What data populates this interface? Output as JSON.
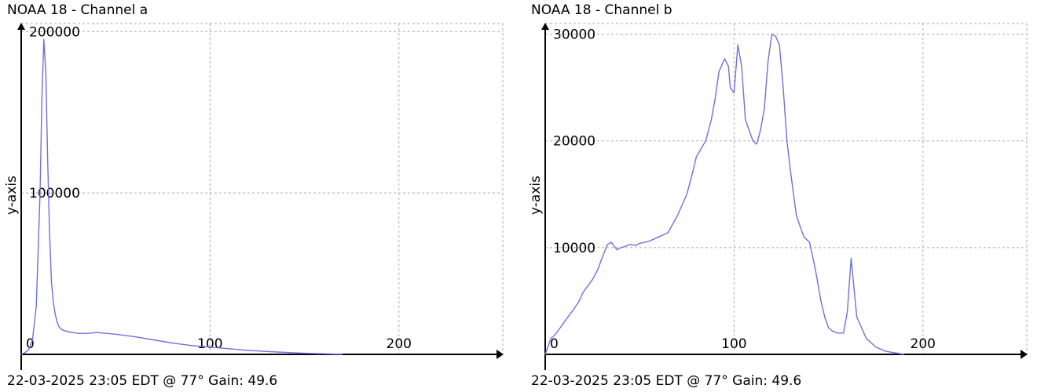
{
  "charts": [
    {
      "title": "NOAA 18 - Channel a",
      "footer": "22-03-2025 23:05 EDT @ 77° Gain: 49.6",
      "ylabel": "y-axis",
      "ytick_labels": [
        "100000",
        "200000"
      ],
      "xtick_labels": [
        "0",
        "100",
        "200"
      ]
    },
    {
      "title": "NOAA 18 - Channel b",
      "footer": "22-03-2025 23:05 EDT @ 77° Gain: 49.6",
      "ylabel": "y-axis",
      "ytick_labels": [
        "10000",
        "20000",
        "30000"
      ],
      "xtick_labels": [
        "0",
        "100",
        "200"
      ]
    }
  ],
  "colors": {
    "line": "#7070dd",
    "grid": "#aaaaaa",
    "axis": "#000000"
  },
  "chart_data": [
    {
      "type": "line",
      "title": "NOAA 18 - Channel a",
      "xlabel": "",
      "ylabel": "y-axis",
      "xlim": [
        0,
        255
      ],
      "ylim": [
        0,
        205000
      ],
      "xticks": [
        0,
        100,
        200
      ],
      "yticks": [
        100000,
        200000
      ],
      "grid": true,
      "x": [
        0,
        2,
        4,
        6,
        8,
        10,
        11,
        12,
        13,
        14,
        15,
        16,
        17,
        18,
        19,
        20,
        22,
        25,
        30,
        35,
        40,
        45,
        50,
        60,
        70,
        80,
        90,
        100,
        110,
        120,
        130,
        140,
        150,
        160,
        170
      ],
      "y": [
        0,
        1000,
        3000,
        9000,
        30000,
        100000,
        160000,
        195000,
        175000,
        120000,
        75000,
        45000,
        32000,
        25000,
        20000,
        17000,
        15000,
        14000,
        13000,
        13000,
        13500,
        13000,
        12500,
        11000,
        9000,
        7000,
        5500,
        4500,
        3500,
        2500,
        1800,
        1200,
        700,
        400,
        0
      ]
    },
    {
      "type": "line",
      "title": "NOAA 18 - Channel b",
      "xlabel": "",
      "ylabel": "y-axis",
      "xlim": [
        0,
        255
      ],
      "ylim": [
        0,
        31000
      ],
      "xticks": [
        0,
        100,
        200
      ],
      "yticks": [
        10000,
        20000,
        30000
      ],
      "grid": true,
      "x": [
        0,
        3,
        5,
        8,
        10,
        12,
        15,
        18,
        20,
        25,
        28,
        30,
        33,
        35,
        38,
        40,
        42,
        45,
        48,
        50,
        55,
        60,
        65,
        70,
        75,
        78,
        80,
        85,
        88,
        90,
        92,
        95,
        97,
        98,
        100,
        102,
        104,
        106,
        108,
        110,
        112,
        114,
        116,
        118,
        120,
        122,
        124,
        126,
        128,
        130,
        133,
        135,
        137,
        140,
        143,
        146,
        148,
        150,
        152,
        155,
        158,
        160,
        162,
        165,
        170,
        175,
        180,
        190
      ],
      "y": [
        0,
        1500,
        1800,
        2500,
        3000,
        3500,
        4200,
        5000,
        5800,
        7000,
        8000,
        9000,
        10300,
        10500,
        9800,
        10000,
        10100,
        10300,
        10200,
        10400,
        10600,
        11000,
        11400,
        13000,
        15000,
        17000,
        18500,
        20000,
        22000,
        24000,
        26500,
        27700,
        27000,
        25000,
        24500,
        29000,
        27000,
        22000,
        21000,
        20000,
        19700,
        21000,
        23000,
        27500,
        30000,
        29800,
        29000,
        25000,
        20000,
        17000,
        13000,
        12000,
        11000,
        10500,
        8000,
        5000,
        3500,
        2500,
        2200,
        2000,
        2000,
        4000,
        9000,
        3500,
        1500,
        700,
        300,
        0
      ]
    }
  ]
}
